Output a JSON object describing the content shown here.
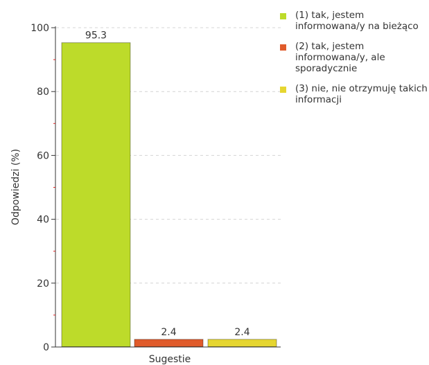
{
  "chart_data": {
    "type": "bar",
    "categories": [
      "Sugestie"
    ],
    "series": [
      {
        "name": "(1) tak, jestem informowana/y na bieżąco",
        "values": [
          95.3
        ],
        "color": "#bddb2a"
      },
      {
        "name": "(2) tak, jestem informowana/y, ale sporadycznie",
        "values": [
          2.4
        ],
        "color": "#e05b2b"
      },
      {
        "name": "(3) nie, nie otrzymuję takich informacji",
        "values": [
          2.4
        ],
        "color": "#e6d631"
      }
    ],
    "value_labels": [
      "95.3",
      "2.4",
      "2.4"
    ],
    "xlabel": "Sugestie",
    "ylabel": "Odpowiedzi (%)",
    "ylim": [
      0,
      100
    ],
    "yticks": [
      0,
      20,
      40,
      60,
      80,
      100
    ],
    "grid": true,
    "legend_position": "right"
  }
}
